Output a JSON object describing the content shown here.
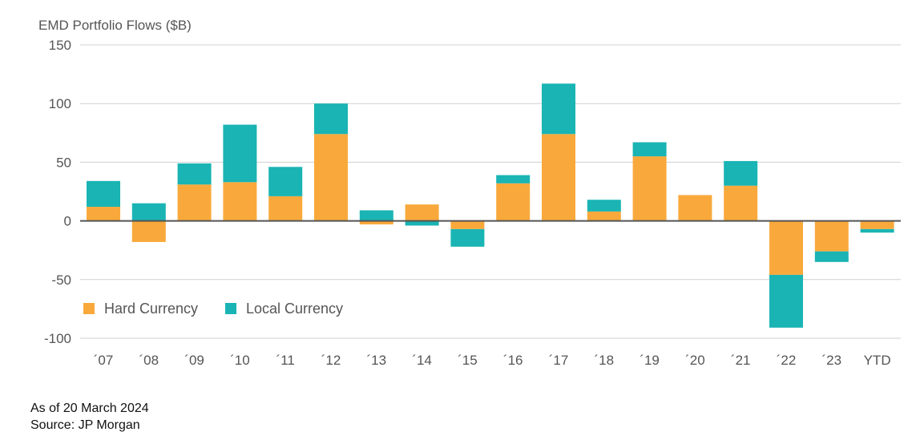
{
  "chart_data": {
    "type": "bar",
    "stacked": true,
    "title": "EMD Portfolio Flows ($B)",
    "categories": [
      "´07",
      "´08",
      "´09",
      "´10",
      "´11",
      "´12",
      "´13",
      "´14",
      "´15",
      "´16",
      "´17",
      "´18",
      "´19",
      "´20",
      "´21",
      "´22",
      "´23",
      "YTD"
    ],
    "series": [
      {
        "name": "Hard Currency",
        "color": "#F9A93B",
        "values": [
          12,
          -18,
          31,
          33,
          21,
          74,
          -3,
          14,
          -7,
          32,
          74,
          8,
          55,
          22,
          30,
          -46,
          -26,
          -7
        ]
      },
      {
        "name": "Local Currency",
        "color": "#1AB4B4",
        "values": [
          22,
          15,
          18,
          49,
          25,
          26,
          9,
          -4,
          -15,
          7,
          43,
          10,
          12,
          0,
          21,
          -45,
          -9,
          -3
        ]
      }
    ],
    "ylim": [
      -100,
      150
    ],
    "yticks": [
      150,
      100,
      50,
      0,
      -50,
      -100
    ],
    "grid": true,
    "legend": "bottom-left"
  },
  "footer": {
    "as_of": "As of 20 March 2024",
    "source": "Source: JP Morgan"
  }
}
